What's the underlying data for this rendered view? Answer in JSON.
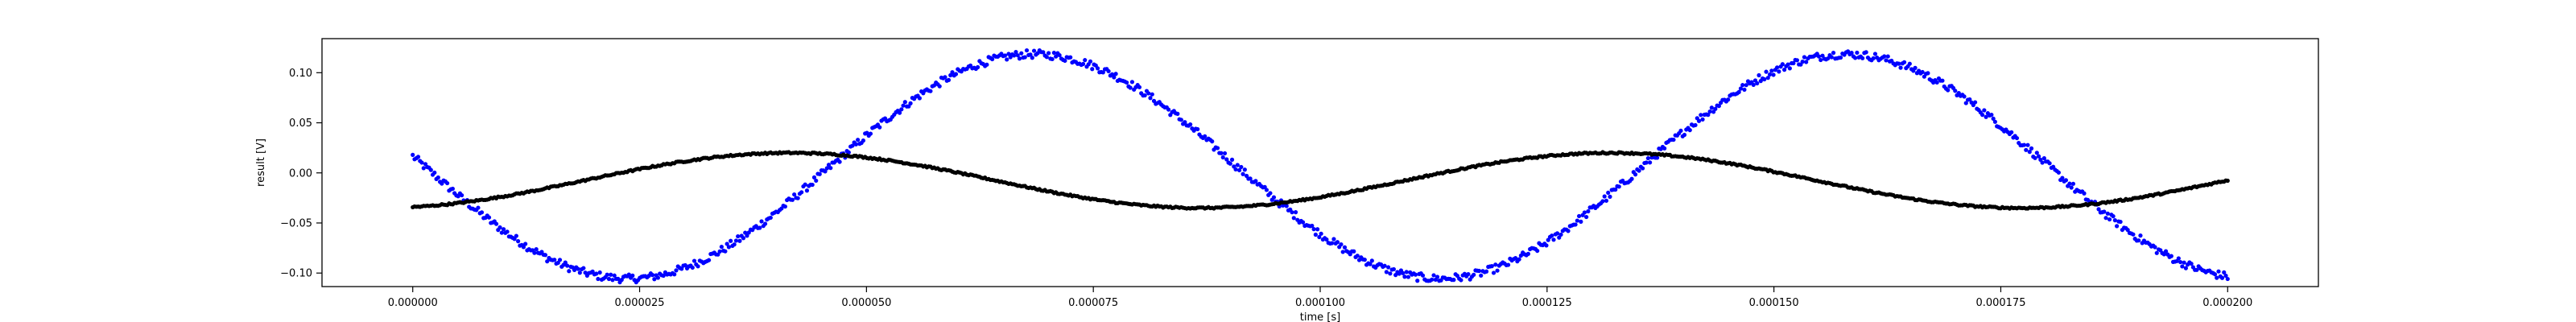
{
  "chart_data": {
    "type": "scatter",
    "xlabel": "time [s]",
    "ylabel": "result [V]",
    "xlim": [
      -1e-05,
      0.00021
    ],
    "ylim": [
      -0.1135,
      0.134
    ],
    "xticks": [
      0,
      2.5e-05,
      5e-05,
      7.5e-05,
      0.0001,
      0.000125,
      0.00015,
      0.000175,
      0.0002
    ],
    "xtick_labels": [
      "0.000000",
      "0.000025",
      "0.000050",
      "0.000075",
      "0.000100",
      "0.000125",
      "0.000150",
      "0.000175",
      "0.000200"
    ],
    "yticks": [
      -0.1,
      -0.05,
      0.0,
      0.05,
      0.1
    ],
    "ytick_labels": [
      "−0.10",
      "−0.05",
      "0.00",
      "0.05",
      "0.10"
    ],
    "grid": false,
    "legend": "none",
    "series": [
      {
        "color": "#0000ff",
        "x_range": [
          0,
          0.0002
        ],
        "point_count": 1000,
        "curve": "sine",
        "offset": 0.0065,
        "amplitude": 0.112,
        "period": 8.95e-05,
        "phase_rad": 3.05,
        "noise_amplitude": 0.004,
        "sample_points": [
          {
            "x": 0.0,
            "y": 0.012
          },
          {
            "x": 2.2e-05,
            "y": -0.104
          },
          {
            "x": 4.6e-05,
            "y": 0.0
          },
          {
            "x": 7e-05,
            "y": 0.118
          },
          {
            "x": 9.1e-05,
            "y": 0.0
          },
          {
            "x": 0.000113,
            "y": -0.104
          },
          {
            "x": 0.000136,
            "y": 0.0
          },
          {
            "x": 0.00016,
            "y": 0.118
          },
          {
            "x": 0.000182,
            "y": 0.0
          },
          {
            "x": 0.0002,
            "y": -0.098
          }
        ]
      },
      {
        "color": "#000000",
        "x_range": [
          0,
          0.0002
        ],
        "point_count": 1000,
        "curve": "sine",
        "offset": -0.0075,
        "amplitude": 0.0275,
        "period": 9.05e-05,
        "phase_rad": 4.97,
        "noise_amplitude": 0.0008,
        "sample_points": [
          {
            "x": 0.0,
            "y": -0.021
          },
          {
            "x": 3.3e-05,
            "y": 0.02
          },
          {
            "x": 5.5e-05,
            "y": 0.0
          },
          {
            "x": 7.8e-05,
            "y": -0.035
          },
          {
            "x": 0.0001,
            "y": 0.0
          },
          {
            "x": 0.000123,
            "y": 0.02
          },
          {
            "x": 0.000145,
            "y": 0.0
          },
          {
            "x": 0.000168,
            "y": -0.035
          },
          {
            "x": 0.0002,
            "y": 0.008
          }
        ]
      }
    ]
  }
}
